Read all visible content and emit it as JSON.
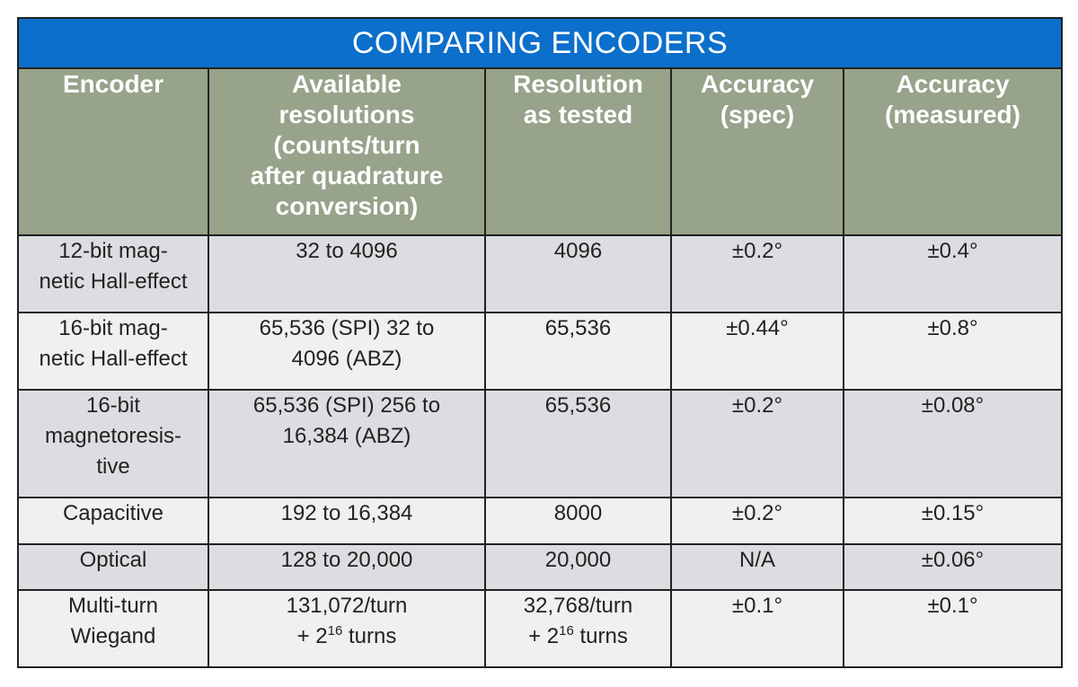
{
  "title": "COMPARING ENCODERS",
  "colors": {
    "title_bg": "#0b6fcb",
    "header_bg": "#97a38b",
    "row_dark": "#dcdde0",
    "row_light": "#f0f0f0"
  },
  "headers": [
    "Encoder",
    "Available\nresolutions\n(counts/turn\nafter quadrature\nconversion)",
    "Resolution\nas tested",
    "Accuracy\n(spec)",
    "Accuracy\n(measured)"
  ],
  "rows": [
    {
      "cells": [
        "12-bit mag-\nnetic Hall-effect",
        "32 to 4096",
        "4096",
        "±0.2°",
        "±0.4°"
      ]
    },
    {
      "cells": [
        "16-bit mag-\nnetic Hall-effect",
        "65,536 (SPI) 32 to\n4096 (ABZ)",
        "65,536",
        "±0.44°",
        "±0.8°"
      ]
    },
    {
      "cells": [
        "16-bit\nmagnetoresis-\ntive",
        "65,536 (SPI) 256 to\n16,384 (ABZ)",
        "65,536",
        "±0.2°",
        "±0.08°"
      ]
    },
    {
      "cells": [
        "Capacitive",
        "192 to 16,384",
        "8000",
        "±0.2°",
        "±0.15°"
      ]
    },
    {
      "cells": [
        "Optical",
        "128 to 20,000",
        "20,000",
        "N/A",
        "±0.06°"
      ]
    },
    {
      "cells": [
        "Multi-turn\nWiegand",
        {
          "line1": "131,072/turn",
          "pre": "+ 2",
          "sup": "16",
          "post": " turns"
        },
        {
          "line1": "32,768/turn",
          "pre": "+ 2",
          "sup": "16",
          "post": " turns"
        },
        "±0.1°",
        "±0.1°"
      ]
    }
  ]
}
